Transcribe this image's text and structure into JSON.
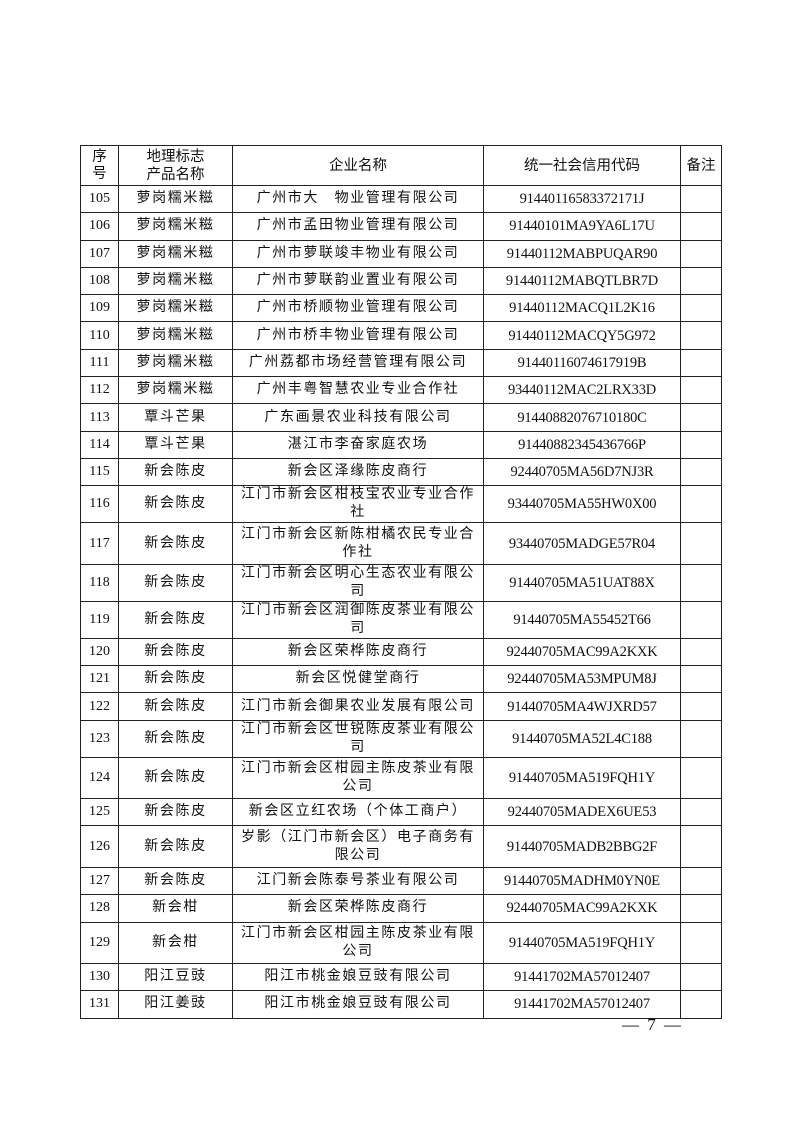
{
  "table": {
    "headers": [
      "序\n号",
      "地理标志\n产品名称",
      "企业名称",
      "统一社会信用代码",
      "备注"
    ],
    "rows": [
      {
        "no": "105",
        "product": "萝岗糯米糍",
        "company": "广州市大　物业管理有限公司",
        "code": "91440116583372171J",
        "note": ""
      },
      {
        "no": "106",
        "product": "萝岗糯米糍",
        "company": "广州市孟田物业管理有限公司",
        "code": "91440101MA9YA6L17U",
        "note": ""
      },
      {
        "no": "107",
        "product": "萝岗糯米糍",
        "company": "广州市萝联竣丰物业有限公司",
        "code": "91440112MABPUQAR90",
        "note": ""
      },
      {
        "no": "108",
        "product": "萝岗糯米糍",
        "company": "广州市萝联韵业置业有限公司",
        "code": "91440112MABQTLBR7D",
        "note": ""
      },
      {
        "no": "109",
        "product": "萝岗糯米糍",
        "company": "广州市桥顺物业管理有限公司",
        "code": "91440112MACQ1L2K16",
        "note": ""
      },
      {
        "no": "110",
        "product": "萝岗糯米糍",
        "company": "广州市桥丰物业管理有限公司",
        "code": "91440112MACQY5G972",
        "note": ""
      },
      {
        "no": "111",
        "product": "萝岗糯米糍",
        "company": "广州荔都市场经营管理有限公司",
        "code": "91440116074617919B",
        "note": ""
      },
      {
        "no": "112",
        "product": "萝岗糯米糍",
        "company": "广州丰粤智慧农业专业合作社",
        "code": "93440112MAC2LRX33D",
        "note": ""
      },
      {
        "no": "113",
        "product": "覃斗芒果",
        "company": "广东画景农业科技有限公司",
        "code": "91440882076710180C",
        "note": ""
      },
      {
        "no": "114",
        "product": "覃斗芒果",
        "company": "湛江市李奋家庭农场",
        "code": "91440882345436766P",
        "note": ""
      },
      {
        "no": "115",
        "product": "新会陈皮",
        "company": "新会区泽缘陈皮商行",
        "code": "92440705MA56D7NJ3R",
        "note": ""
      },
      {
        "no": "116",
        "product": "新会陈皮",
        "company": "江门市新会区柑枝宝农业专业合作社",
        "code": "93440705MA55HW0X00",
        "note": ""
      },
      {
        "no": "117",
        "product": "新会陈皮",
        "company": "江门市新会区新陈柑橘农民专业合作社",
        "code": "93440705MADGE57R04",
        "note": "",
        "double": true
      },
      {
        "no": "118",
        "product": "新会陈皮",
        "company": "江门市新会区明心生态农业有限公司",
        "code": "91440705MA51UAT88X",
        "note": ""
      },
      {
        "no": "119",
        "product": "新会陈皮",
        "company": "江门市新会区润御陈皮茶业有限公司",
        "code": "91440705MA55452T66",
        "note": ""
      },
      {
        "no": "120",
        "product": "新会陈皮",
        "company": "新会区荣桦陈皮商行",
        "code": "92440705MAC99A2KXK",
        "note": ""
      },
      {
        "no": "121",
        "product": "新会陈皮",
        "company": "新会区悦健堂商行",
        "code": "92440705MA53MPUM8J",
        "note": ""
      },
      {
        "no": "122",
        "product": "新会陈皮",
        "company": "江门市新会御果农业发展有限公司",
        "code": "91440705MA4WJXRD57",
        "note": ""
      },
      {
        "no": "123",
        "product": "新会陈皮",
        "company": "江门市新会区世锐陈皮茶业有限公司",
        "code": "91440705MA52L4C188",
        "note": ""
      },
      {
        "no": "124",
        "product": "新会陈皮",
        "company": "江门市新会区柑园主陈皮茶业有限公司",
        "code": "91440705MA519FQH1Y",
        "note": "",
        "double": true
      },
      {
        "no": "125",
        "product": "新会陈皮",
        "company": "新会区立红农场（个体工商户）",
        "code": "92440705MADEX6UE53",
        "note": ""
      },
      {
        "no": "126",
        "product": "新会陈皮",
        "company": "岁影（江门市新会区）电子商务有限公司",
        "code": "91440705MADB2BBG2F",
        "note": "",
        "double": true
      },
      {
        "no": "127",
        "product": "新会陈皮",
        "company": "江门新会陈泰号茶业有限公司",
        "code": "91440705MADHM0YN0E",
        "note": ""
      },
      {
        "no": "128",
        "product": "新会柑",
        "company": "新会区荣桦陈皮商行",
        "code": "92440705MAC99A2KXK",
        "note": ""
      },
      {
        "no": "129",
        "product": "新会柑",
        "company": "江门市新会区柑园主陈皮茶业有限公司",
        "code": "91440705MA519FQH1Y",
        "note": "",
        "double": true
      },
      {
        "no": "130",
        "product": "阳江豆豉",
        "company": "阳江市桃金娘豆豉有限公司",
        "code": "91441702MA57012407",
        "note": ""
      },
      {
        "no": "131",
        "product": "阳江姜豉",
        "company": "阳江市桃金娘豆豉有限公司",
        "code": "91441702MA57012407",
        "note": ""
      }
    ]
  },
  "footer": {
    "page_number": "— 7 —"
  }
}
